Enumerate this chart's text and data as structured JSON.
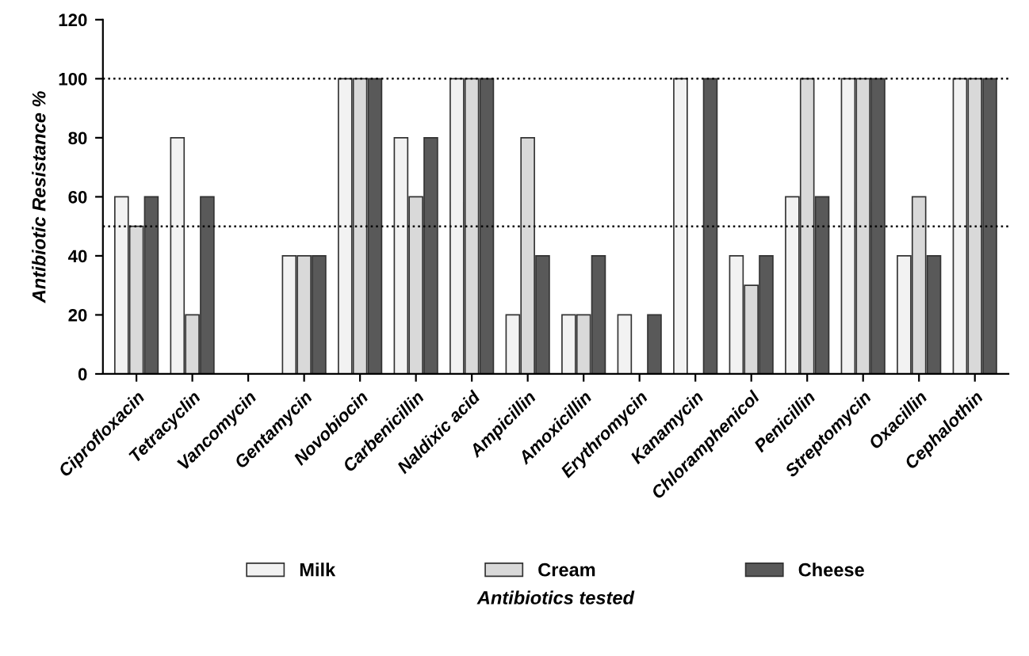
{
  "chart_data": {
    "type": "bar",
    "xlabel": "Antibiotics tested",
    "ylabel": "Antibiotic Resistance %",
    "categories": [
      "Ciprofloxacin",
      "Tetracyclin",
      "Vancomycin",
      "Gentamycin",
      "Novobiocin",
      "Carbenicillin",
      "Naldixic acid",
      "Ampicillin",
      "Amoxicillin",
      "Erythromycin",
      "Kanamycin",
      "Chloramphenicol",
      "Penicillin",
      "Streptomycin",
      "Oxacillin",
      "Cephalothin"
    ],
    "series": [
      {
        "name": "Milk",
        "color": "#f2f2f2",
        "values": [
          60,
          80,
          0,
          40,
          100,
          80,
          100,
          20,
          20,
          20,
          100,
          40,
          60,
          100,
          40,
          100
        ]
      },
      {
        "name": "Cream",
        "color": "#d9d9d9",
        "values": [
          50,
          20,
          0,
          40,
          100,
          60,
          100,
          80,
          20,
          0,
          0,
          30,
          100,
          100,
          60,
          100
        ]
      },
      {
        "name": "Cheese",
        "color": "#595959",
        "values": [
          60,
          60,
          0,
          40,
          100,
          80,
          100,
          40,
          40,
          20,
          100,
          40,
          60,
          100,
          40,
          100
        ]
      }
    ],
    "ylim": [
      0,
      120
    ],
    "yticks": [
      0,
      20,
      40,
      60,
      80,
      100,
      120
    ],
    "ref_lines": [
      {
        "axis": "y",
        "value": 100,
        "line_style": "dotted",
        "color": "#000000"
      },
      {
        "axis": "y",
        "value": 50,
        "line_style": "dotted",
        "color": "#000000"
      }
    ],
    "grid": false,
    "legend": "bottom"
  }
}
